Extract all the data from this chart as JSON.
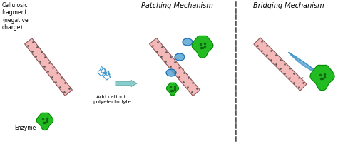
{
  "bg_color": "#ffffff",
  "panel1_label": "Cellulosic\nfragment\n(negative\ncharge)",
  "panel2_label": "Patching Mechanism",
  "panel3_label": "Bridging Mechanism",
  "arrow_label": "Add cationic\npolyelectrolyte",
  "enzyme_label": "Enzyme",
  "fiber_color": "#f4b8b8",
  "fiber_edge": "#8b5a5a",
  "dot_color": "#555555",
  "branch_color": "#8b5a5a",
  "enzyme_color": "#22bb22",
  "enzyme_dark": "#116611",
  "poly_color": "#4499cc",
  "arrow_color": "#88cccc",
  "dashed_color": "#555555",
  "fig_width": 4.74,
  "fig_height": 2.03,
  "dpi": 100
}
